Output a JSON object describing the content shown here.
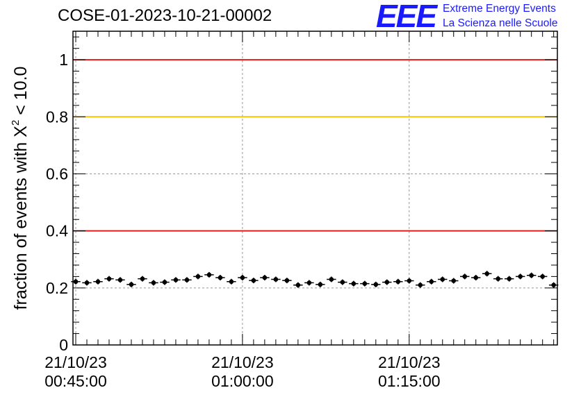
{
  "header": {
    "title": "COSE-01-2023-10-21-00002",
    "logo_letters": "EEE",
    "org_line1": "Extreme Energy Events",
    "org_line2": "La Scienza nelle Scuole"
  },
  "colors": {
    "brand_blue": "#1a1aff",
    "red_line": "#e41a1a",
    "orange_line": "#ffc400",
    "grid": "#999999",
    "points": "#000000"
  },
  "chart_data": {
    "type": "scatter",
    "title": "COSE-01-2023-10-21-00002",
    "ylabel_prefix": "fraction of events with ",
    "ylabel_chi": "X",
    "ylabel_sup": "2",
    "ylabel_suffix": " < 10.0",
    "xlabel": "",
    "x_axis_type": "time",
    "x_range": [
      "2023-10-21 00:44:45",
      "2023-10-21 01:28:20"
    ],
    "ylim": [
      0,
      1.1
    ],
    "y_ticks": [
      0,
      0.2,
      0.4,
      0.6,
      0.8,
      1
    ],
    "y_tick_labels": [
      "0",
      "0.2",
      "0.4",
      "0.6",
      "0.8",
      "1"
    ],
    "x_ticks": [
      "2023-10-21 00:45:00",
      "2023-10-21 01:00:00",
      "2023-10-21 01:15:00"
    ],
    "x_tick_labels": [
      {
        "date": "21/10/23",
        "time": "00:45:00"
      },
      {
        "date": "21/10/23",
        "time": "01:00:00"
      },
      {
        "date": "21/10/23",
        "time": "01:15:00"
      }
    ],
    "grid": true,
    "reference_lines": [
      {
        "y": 1.0,
        "color": "#e41a1a"
      },
      {
        "y": 0.8,
        "color": "#ffc400"
      },
      {
        "y": 0.4,
        "color": "#e41a1a"
      }
    ],
    "series": [
      {
        "x": [
          "00:45:00",
          "00:46:00",
          "00:47:00",
          "00:48:00",
          "00:49:00",
          "00:50:00",
          "00:51:00",
          "00:52:00",
          "00:53:00",
          "00:54:00",
          "00:55:00",
          "00:56:00",
          "00:57:00",
          "00:58:00",
          "00:59:00",
          "01:00:00",
          "01:01:00",
          "01:02:00",
          "01:03:00",
          "01:04:00",
          "01:05:00",
          "01:06:00",
          "01:07:00",
          "01:08:00",
          "01:09:00",
          "01:10:00",
          "01:11:00",
          "01:12:00",
          "01:13:00",
          "01:14:00",
          "01:15:00",
          "01:16:00",
          "01:17:00",
          "01:18:00",
          "01:19:00",
          "01:20:00",
          "01:21:00",
          "01:22:00",
          "01:23:00",
          "01:24:00",
          "01:25:00",
          "01:26:00",
          "01:27:00",
          "01:28:00"
        ],
        "y": [
          0.222,
          0.218,
          0.222,
          0.232,
          0.228,
          0.212,
          0.232,
          0.218,
          0.22,
          0.228,
          0.228,
          0.24,
          0.246,
          0.236,
          0.222,
          0.236,
          0.226,
          0.236,
          0.23,
          0.226,
          0.21,
          0.218,
          0.212,
          0.23,
          0.22,
          0.215,
          0.215,
          0.212,
          0.22,
          0.222,
          0.225,
          0.21,
          0.222,
          0.23,
          0.225,
          0.24,
          0.236,
          0.25,
          0.232,
          0.232,
          0.24,
          0.244,
          0.24,
          0.21
        ]
      }
    ]
  }
}
